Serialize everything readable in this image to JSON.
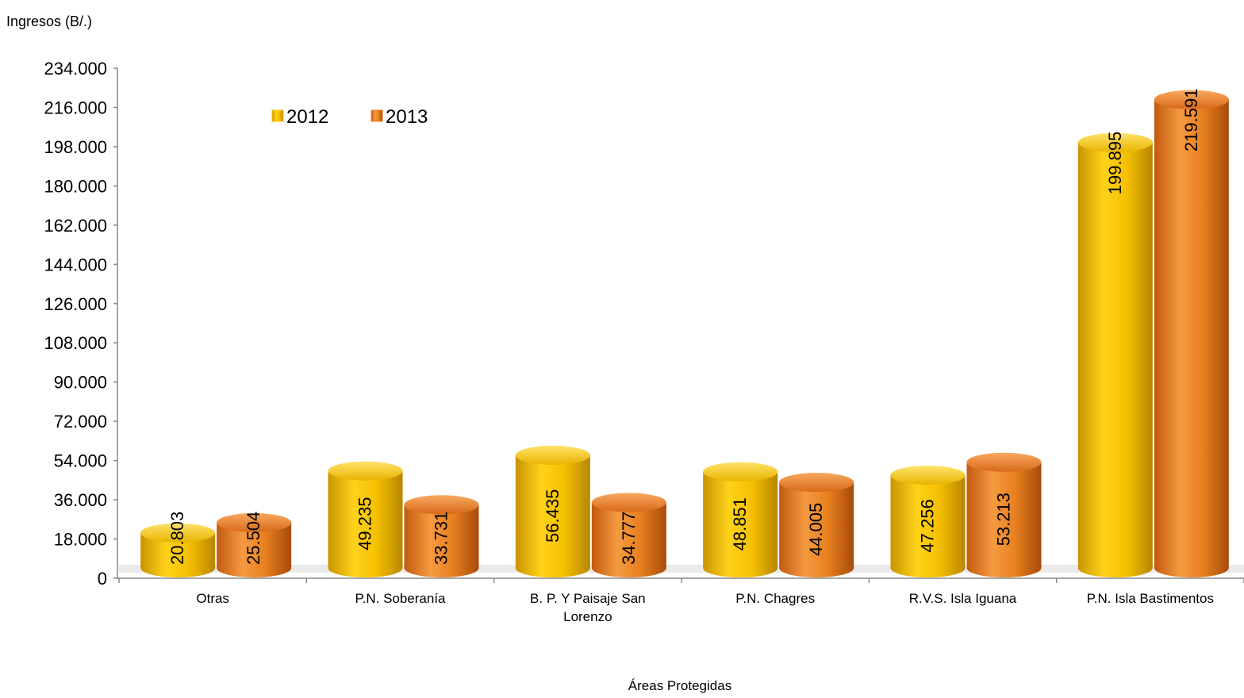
{
  "chart_data": {
    "type": "bar",
    "title": "",
    "ylabel": "Ingresos (B/.)",
    "xlabel": "Áreas Protegidas",
    "categories": [
      "Otras",
      "P.N. Soberanía",
      "B. P. Y Paisaje San Lorenzo",
      "P.N. Chagres",
      "R.V.S. Isla Iguana",
      "P.N. Isla Bastimentos"
    ],
    "category_lines": [
      [
        "Otras"
      ],
      [
        "P.N. Soberanía"
      ],
      [
        "B. P. Y Paisaje San",
        "Lorenzo"
      ],
      [
        "P.N. Chagres"
      ],
      [
        "R.V.S. Isla Iguana"
      ],
      [
        "P.N. Isla Bastimentos"
      ]
    ],
    "series": [
      {
        "name": "2012",
        "values": [
          20803,
          49235,
          56435,
          48851,
          47256,
          199895
        ],
        "labels": [
          "20.803",
          "49.235",
          "56.435",
          "48.851",
          "47.256",
          "199.895"
        ],
        "color": "#F2C200"
      },
      {
        "name": "2013",
        "values": [
          25504,
          33731,
          34777,
          44005,
          53213,
          219591
        ],
        "labels": [
          "25.504",
          "33.731",
          "34.777",
          "44.005",
          "53.213",
          "219.591"
        ],
        "color": "#E87A1E"
      }
    ],
    "ylim": [
      0,
      234000
    ],
    "yticks": [
      0,
      18000,
      36000,
      54000,
      72000,
      90000,
      108000,
      126000,
      144000,
      162000,
      180000,
      198000,
      216000,
      234000
    ],
    "ytick_labels": [
      "0",
      "18.000",
      "36.000",
      "54.000",
      "72.000",
      "90.000",
      "108.000",
      "126.000",
      "144.000",
      "162.000",
      "180.000",
      "198.000",
      "216.000",
      "234.000"
    ],
    "legend_position": "top-left",
    "grid": false,
    "style": "3d-cylinder"
  }
}
